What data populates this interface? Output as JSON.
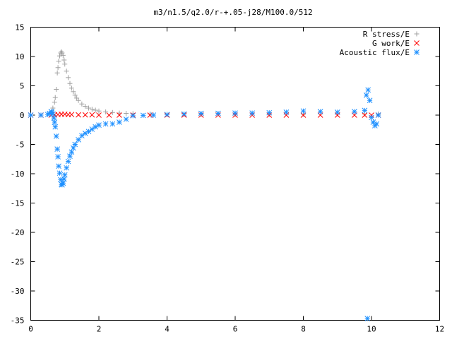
{
  "chart_data": {
    "type": "scatter",
    "title": "m3/n1.5/q2.0/r-+.05-j28/M100.0/512",
    "xlabel": "",
    "ylabel": "",
    "xlim": [
      0,
      12
    ],
    "ylim": [
      -35,
      15
    ],
    "x_ticks": [
      "0",
      "2",
      "4",
      "6",
      "8",
      "10",
      "12"
    ],
    "y_ticks": [
      "15",
      "10",
      "5",
      "0",
      "-5",
      "-10",
      "-15",
      "-20",
      "-25",
      "-30",
      "-35"
    ],
    "x_tick_values": [
      0,
      2,
      4,
      6,
      8,
      10,
      12
    ],
    "y_tick_values": [
      15,
      10,
      5,
      0,
      -5,
      -10,
      -15,
      -20,
      -25,
      -30,
      -35
    ],
    "grid": false,
    "legend_position": "top-right",
    "series": [
      {
        "name": "R stress/E",
        "marker": "plus",
        "color": "#a0a0a0",
        "x": [
          0.0,
          0.3,
          0.6,
          0.65,
          0.7,
          0.72,
          0.75,
          0.78,
          0.8,
          0.82,
          0.85,
          0.88,
          0.9,
          0.92,
          0.95,
          0.98,
          1.0,
          1.05,
          1.1,
          1.15,
          1.2,
          1.25,
          1.3,
          1.35,
          1.4,
          1.5,
          1.6,
          1.7,
          1.8,
          1.9,
          2.0,
          2.2,
          2.4,
          2.6,
          2.8,
          3.0,
          3.5,
          4.0,
          5.0,
          6.0,
          7.0,
          8.0,
          9.0,
          9.8,
          10.2
        ],
        "y": [
          0.0,
          0.0,
          0.4,
          1.2,
          2.2,
          3.0,
          4.4,
          7.2,
          8.1,
          9.2,
          10.1,
          10.6,
          10.8,
          10.6,
          10.2,
          9.4,
          8.7,
          7.5,
          6.4,
          5.4,
          4.6,
          4.0,
          3.4,
          2.9,
          2.5,
          1.9,
          1.5,
          1.2,
          1.0,
          0.85,
          0.7,
          0.55,
          0.45,
          0.35,
          0.3,
          0.25,
          0.2,
          0.15,
          0.1,
          0.1,
          0.1,
          0.15,
          0.2,
          0.2,
          0.2
        ]
      },
      {
        "name": "G work/E",
        "marker": "cross",
        "color": "#ff0000",
        "x": [
          0.0,
          0.3,
          0.6,
          0.7,
          0.8,
          0.9,
          1.0,
          1.1,
          1.2,
          1.4,
          1.6,
          1.8,
          2.0,
          2.3,
          2.6,
          3.0,
          3.5,
          4.0,
          4.5,
          5.0,
          5.5,
          6.0,
          6.5,
          7.0,
          7.5,
          8.0,
          8.5,
          9.0,
          9.5,
          9.8,
          10.0,
          10.2
        ],
        "y": [
          0.0,
          0.0,
          0.0,
          0.05,
          0.1,
          0.15,
          0.15,
          0.1,
          0.1,
          0.05,
          0.05,
          0.05,
          0.0,
          0.0,
          0.0,
          0.0,
          0.0,
          0.0,
          0.0,
          0.0,
          0.0,
          0.0,
          0.0,
          0.0,
          0.0,
          0.0,
          0.0,
          0.0,
          0.0,
          0.0,
          0.0,
          0.0
        ]
      },
      {
        "name": "Acoustic flux/E",
        "marker": "star",
        "color": "#1e90ff",
        "x": [
          0.0,
          0.3,
          0.5,
          0.55,
          0.6,
          0.62,
          0.65,
          0.68,
          0.7,
          0.72,
          0.75,
          0.78,
          0.8,
          0.82,
          0.85,
          0.88,
          0.9,
          0.92,
          0.95,
          0.98,
          1.0,
          1.05,
          1.1,
          1.15,
          1.2,
          1.25,
          1.3,
          1.4,
          1.5,
          1.6,
          1.7,
          1.8,
          1.9,
          2.0,
          2.2,
          2.4,
          2.6,
          2.8,
          3.0,
          3.3,
          3.6,
          4.0,
          4.5,
          5.0,
          5.5,
          6.0,
          6.5,
          7.0,
          7.5,
          8.0,
          8.5,
          9.0,
          9.5,
          9.8,
          9.85,
          9.9,
          9.95,
          10.0,
          10.05,
          10.1,
          10.15,
          10.2,
          9.88
        ],
        "y": [
          0.0,
          0.0,
          0.1,
          0.3,
          0.6,
          0.5,
          0.2,
          -0.5,
          -1.2,
          -2.0,
          -3.6,
          -5.8,
          -7.1,
          -8.7,
          -9.9,
          -11.0,
          -11.8,
          -11.9,
          -11.6,
          -10.9,
          -10.2,
          -9.0,
          -7.9,
          -7.0,
          -6.3,
          -5.6,
          -5.0,
          -4.2,
          -3.5,
          -3.1,
          -2.8,
          -2.4,
          -2.0,
          -1.7,
          -1.5,
          -1.5,
          -1.2,
          -0.7,
          -0.1,
          -0.05,
          0.0,
          0.1,
          0.2,
          0.3,
          0.3,
          0.35,
          0.35,
          0.4,
          0.5,
          0.7,
          0.6,
          0.5,
          0.6,
          0.8,
          3.4,
          4.3,
          2.5,
          -0.4,
          -1.2,
          -1.8,
          -1.5,
          0.0,
          -34.7
        ]
      }
    ]
  }
}
